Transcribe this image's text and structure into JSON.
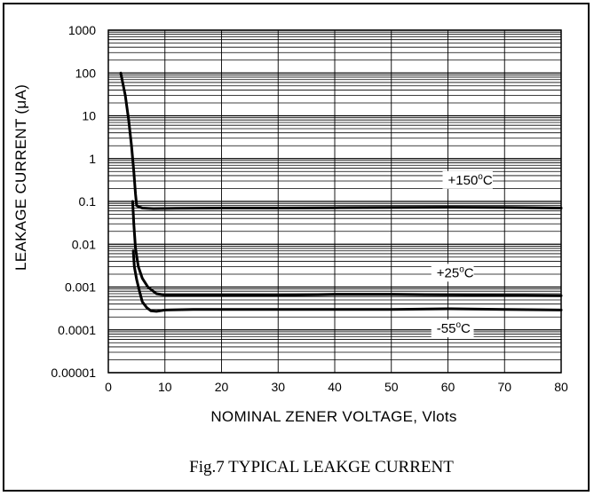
{
  "chart_data": {
    "type": "line",
    "caption": "Fig.7 TYPICAL  LEAKGE  CURRENT",
    "xlabel": "NOMINAL ZENER VOLTAGE, Vlots",
    "ylabel": "LEAKAGE CURRENT (μA)",
    "y_scale": "log",
    "xlim": [
      0,
      80
    ],
    "ylim": [
      1e-05,
      1000
    ],
    "grid": true,
    "x_ticks": [
      0,
      10,
      20,
      30,
      40,
      50,
      60,
      70,
      80
    ],
    "x_tick_labels": [
      "0",
      "10",
      "20",
      "30",
      "40",
      "50",
      "60",
      "70",
      "80"
    ],
    "y_ticks": [
      1e-05,
      0.0001,
      0.001,
      0.01,
      0.1,
      1,
      10,
      100,
      1000
    ],
    "y_tick_labels": [
      "0.00001",
      "0.0001",
      "0.001",
      "0.01",
      "0.1",
      "1",
      "10",
      "100",
      "1000"
    ],
    "series": [
      {
        "name": "+150°C",
        "annotation": {
          "prefix": "+150",
          "sup": "o",
          "suffix": "C"
        },
        "x": [
          2.2,
          3.0,
          3.6,
          4.1,
          4.5,
          4.8,
          5.0,
          5.4,
          6.0,
          8.0,
          12.0,
          20.0,
          30.0,
          40.0,
          50.0,
          60.0,
          70.0,
          80.0
        ],
        "y": [
          100,
          30,
          8,
          2,
          0.5,
          0.15,
          0.08,
          0.075,
          0.07,
          0.068,
          0.069,
          0.07,
          0.07,
          0.071,
          0.072,
          0.073,
          0.072,
          0.07
        ]
      },
      {
        "name": "+25°C",
        "annotation": {
          "prefix": "+25",
          "sup": "o",
          "suffix": "C"
        },
        "x": [
          4.3,
          4.5,
          4.8,
          5.3,
          6.0,
          7.0,
          8.5,
          10.0,
          15.0,
          20.0,
          30.0,
          40.0,
          50.0,
          60.0,
          70.0,
          80.0
        ],
        "y": [
          0.1,
          0.03,
          0.008,
          0.003,
          0.0016,
          0.001,
          0.0007,
          0.00065,
          0.00065,
          0.00065,
          0.00064,
          0.00068,
          0.00068,
          0.00066,
          0.00064,
          0.00063
        ]
      },
      {
        "name": "-55°C",
        "annotation": {
          "prefix": "-55",
          "sup": "o",
          "suffix": "C"
        },
        "x": [
          4.4,
          4.6,
          5.0,
          5.5,
          6.0,
          6.8,
          7.5,
          8.5,
          10.0,
          15.0,
          20.0,
          30.0,
          40.0,
          50.0,
          60.0,
          70.0,
          80.0
        ],
        "y": [
          0.007,
          0.003,
          0.0015,
          0.0008,
          0.00045,
          0.00033,
          0.00028,
          0.00027,
          0.00029,
          0.0003,
          0.0003,
          0.0003,
          0.0003,
          0.0003,
          0.00031,
          0.0003,
          0.00029
        ]
      }
    ]
  }
}
